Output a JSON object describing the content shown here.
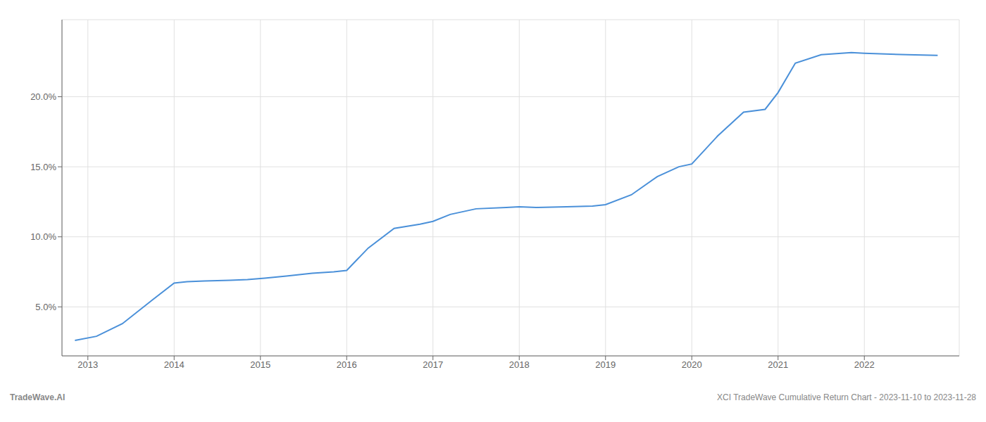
{
  "chart_data": {
    "type": "line",
    "x": [
      2012.85,
      2013.1,
      2013.4,
      2013.75,
      2014.0,
      2014.15,
      2014.35,
      2014.65,
      2014.85,
      2015.05,
      2015.3,
      2015.6,
      2015.85,
      2016.0,
      2016.25,
      2016.55,
      2016.85,
      2017.0,
      2017.2,
      2017.5,
      2017.85,
      2018.0,
      2018.2,
      2018.55,
      2018.85,
      2019.0,
      2019.3,
      2019.6,
      2019.85,
      2020.0,
      2020.3,
      2020.6,
      2020.85,
      2021.0,
      2021.2,
      2021.5,
      2021.85,
      2022.0,
      2022.5,
      2022.85
    ],
    "values": [
      2.6,
      2.9,
      3.8,
      5.5,
      6.7,
      6.8,
      6.85,
      6.9,
      6.95,
      7.05,
      7.2,
      7.4,
      7.5,
      7.6,
      9.2,
      10.6,
      10.9,
      11.1,
      11.6,
      12.0,
      12.1,
      12.15,
      12.1,
      12.15,
      12.2,
      12.3,
      13.0,
      14.3,
      15.0,
      15.2,
      17.2,
      18.9,
      19.1,
      20.3,
      22.4,
      23.0,
      23.15,
      23.1,
      23.0,
      22.95
    ],
    "color": "#4a90d9",
    "xlim": [
      2012.7,
      2023.1
    ],
    "ylim": [
      1.5,
      25.5
    ],
    "xticks": [
      2013,
      2014,
      2015,
      2016,
      2017,
      2018,
      2019,
      2020,
      2021,
      2022
    ],
    "yticks": [
      {
        "value": 5.0,
        "label": "5.0%"
      },
      {
        "value": 10.0,
        "label": "10.0%"
      },
      {
        "value": 15.0,
        "label": "15.0%"
      },
      {
        "value": 20.0,
        "label": "20.0%"
      }
    ],
    "grid": true,
    "annotations": [
      "TradeWave.AI",
      "XCI TradeWave Cumulative Return Chart - 2023-11-10 to 2023-11-28"
    ]
  }
}
